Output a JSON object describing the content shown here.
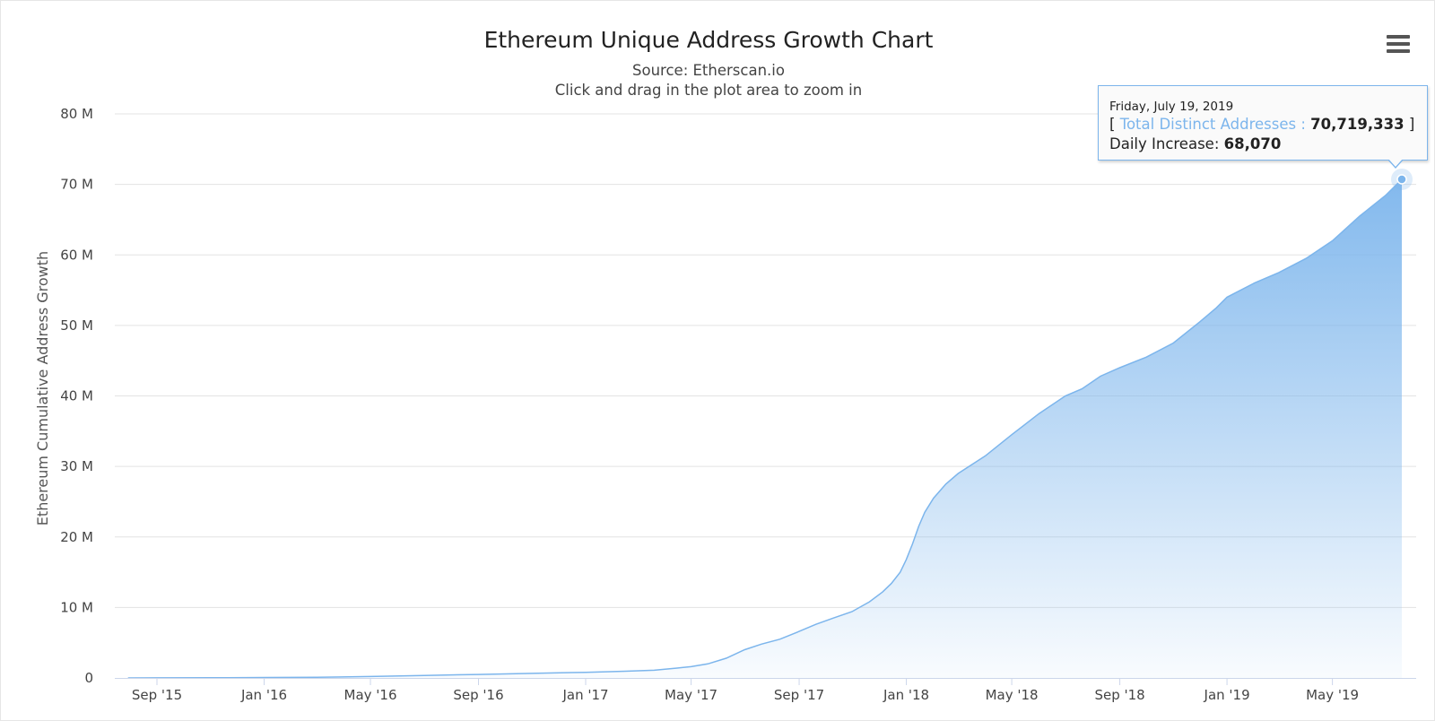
{
  "chart_data": {
    "type": "area",
    "title": "Ethereum Unique Address Growth Chart",
    "subtitle": "Source: Etherscan.io",
    "subtitle2": "Click and drag in the plot area to zoom in",
    "ylabel": "Ethereum Cumulative Address Growth",
    "xlabel": "",
    "ylim": [
      0,
      80000000
    ],
    "xlim": [
      "2015-07-30",
      "2019-07-19"
    ],
    "grid": true,
    "legend": "none",
    "y_ticks": [
      {
        "value": 0,
        "label": "0"
      },
      {
        "value": 10000000,
        "label": "10 M"
      },
      {
        "value": 20000000,
        "label": "20 M"
      },
      {
        "value": 30000000,
        "label": "30 M"
      },
      {
        "value": 40000000,
        "label": "40 M"
      },
      {
        "value": 50000000,
        "label": "50 M"
      },
      {
        "value": 60000000,
        "label": "60 M"
      },
      {
        "value": 70000000,
        "label": "70 M"
      },
      {
        "value": 80000000,
        "label": "80 M"
      }
    ],
    "x_ticks": [
      {
        "date": "2015-09-01",
        "label": "Sep '15"
      },
      {
        "date": "2016-01-01",
        "label": "Jan '16"
      },
      {
        "date": "2016-05-01",
        "label": "May '16"
      },
      {
        "date": "2016-09-01",
        "label": "Sep '16"
      },
      {
        "date": "2017-01-01",
        "label": "Jan '17"
      },
      {
        "date": "2017-05-01",
        "label": "May '17"
      },
      {
        "date": "2017-09-01",
        "label": "Sep '17"
      },
      {
        "date": "2018-01-01",
        "label": "Jan '18"
      },
      {
        "date": "2018-05-01",
        "label": "May '18"
      },
      {
        "date": "2018-09-01",
        "label": "Sep '18"
      },
      {
        "date": "2019-01-01",
        "label": "Jan '19"
      },
      {
        "date": "2019-05-01",
        "label": "May '19"
      }
    ],
    "series": [
      {
        "name": "Total Distinct Addresses",
        "color": "#7cb5ec",
        "points": [
          [
            "2015-07-30",
            0
          ],
          [
            "2015-09-01",
            10000
          ],
          [
            "2015-11-01",
            30000
          ],
          [
            "2016-01-01",
            60000
          ],
          [
            "2016-03-01",
            100000
          ],
          [
            "2016-05-01",
            200000
          ],
          [
            "2016-07-01",
            350000
          ],
          [
            "2016-09-01",
            500000
          ],
          [
            "2016-11-01",
            650000
          ],
          [
            "2017-01-01",
            800000
          ],
          [
            "2017-02-15",
            950000
          ],
          [
            "2017-03-20",
            1100000
          ],
          [
            "2017-04-15",
            1400000
          ],
          [
            "2017-05-01",
            1600000
          ],
          [
            "2017-05-20",
            2000000
          ],
          [
            "2017-06-10",
            2800000
          ],
          [
            "2017-07-01",
            4000000
          ],
          [
            "2017-07-20",
            4800000
          ],
          [
            "2017-08-10",
            5500000
          ],
          [
            "2017-09-01",
            6600000
          ],
          [
            "2017-09-20",
            7600000
          ],
          [
            "2017-10-10",
            8500000
          ],
          [
            "2017-10-31",
            9400000
          ],
          [
            "2017-11-20",
            10800000
          ],
          [
            "2017-12-05",
            12200000
          ],
          [
            "2017-12-15",
            13400000
          ],
          [
            "2017-12-25",
            15000000
          ],
          [
            "2018-01-01",
            16800000
          ],
          [
            "2018-01-08",
            19000000
          ],
          [
            "2018-01-15",
            21500000
          ],
          [
            "2018-01-22",
            23500000
          ],
          [
            "2018-02-01",
            25500000
          ],
          [
            "2018-02-15",
            27500000
          ],
          [
            "2018-03-01",
            29000000
          ],
          [
            "2018-04-01",
            31500000
          ],
          [
            "2018-05-01",
            34500000
          ],
          [
            "2018-06-01",
            37500000
          ],
          [
            "2018-07-01",
            40000000
          ],
          [
            "2018-07-20",
            41000000
          ],
          [
            "2018-08-10",
            42800000
          ],
          [
            "2018-09-01",
            44000000
          ],
          [
            "2018-10-01",
            45500000
          ],
          [
            "2018-11-01",
            47500000
          ],
          [
            "2018-12-01",
            50500000
          ],
          [
            "2018-12-20",
            52500000
          ],
          [
            "2019-01-01",
            54000000
          ],
          [
            "2019-02-01",
            56000000
          ],
          [
            "2019-03-01",
            57500000
          ],
          [
            "2019-04-01",
            59500000
          ],
          [
            "2019-05-01",
            62000000
          ],
          [
            "2019-06-01",
            65500000
          ],
          [
            "2019-07-01",
            68500000
          ],
          [
            "2019-07-19",
            70719333
          ]
        ]
      }
    ],
    "tooltip": {
      "date": "Friday, July 19, 2019",
      "open_bracket": "[",
      "series_name": "Total Distinct Addresses :",
      "value": "70,719,333",
      "close_bracket": "]",
      "daily_label": "Daily Increase:",
      "daily_value": "68,070"
    }
  },
  "ui": {
    "menu_icon": "hamburger-menu-icon"
  }
}
